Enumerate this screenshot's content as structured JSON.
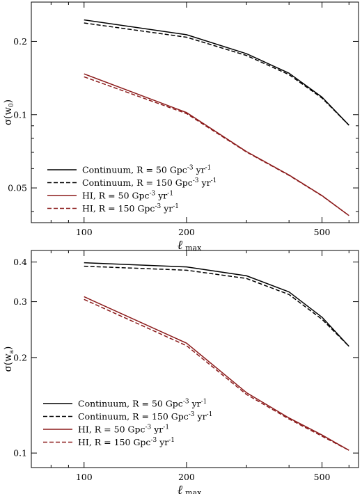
{
  "colors": {
    "continuum": "#000000",
    "hi": "#8b1a1a"
  },
  "chart_data": [
    {
      "type": "line",
      "xlabel_main": "ℓ",
      "xlabel_sub": "max",
      "ylabel_main": "σ(w",
      "ylabel_sub": "0",
      "ylabel_close": ")",
      "xscale": "log",
      "yscale": "log",
      "xlim": [
        70,
        640
      ],
      "ylim": [
        0.036,
        0.29
      ],
      "xticks": [
        100,
        200,
        500
      ],
      "xtick_labels": [
        "100",
        "200",
        "500"
      ],
      "yticks": [
        0.05,
        0.1,
        0.2
      ],
      "ytick_labels": [
        "0.05",
        "0.1",
        "0.2"
      ],
      "legend_position": "lower-left",
      "grid": false,
      "x": [
        100,
        200,
        300,
        400,
        500,
        600
      ],
      "series": [
        {
          "name": "Continuum, R = 50 Gpc-3 yr-1",
          "legend": {
            "a": "Continuum, R = 50 Gpc",
            "b": "-3",
            "c": " yr",
            "d": "-1"
          },
          "color": "continuum",
          "dash": false,
          "values": [
            0.245,
            0.213,
            0.178,
            0.148,
            0.118,
            0.0905
          ]
        },
        {
          "name": "Continuum, R = 150 Gpc-3 yr-1",
          "legend": {
            "a": "Continuum, R = 150 Gpc",
            "b": "-3",
            "c": " yr",
            "d": "-1"
          },
          "color": "continuum",
          "dash": true,
          "values": [
            0.238,
            0.208,
            0.175,
            0.146,
            0.117,
            0.0905
          ]
        },
        {
          "name": "HI, R = 50 Gpc-3 yr-1",
          "legend": {
            "a": "HI, R = 50 Gpc",
            "b": "-3",
            "c": " yr",
            "d": "-1"
          },
          "color": "hi",
          "dash": false,
          "values": [
            0.147,
            0.102,
            0.0705,
            0.0565,
            0.0465,
            0.0385
          ]
        },
        {
          "name": "HI, R = 150 Gpc-3 yr-1",
          "legend": {
            "a": "HI, R = 150 Gpc",
            "b": "-3",
            "c": " yr",
            "d": "-1"
          },
          "color": "hi",
          "dash": true,
          "values": [
            0.143,
            0.101,
            0.0702,
            0.0563,
            0.0464,
            0.0385
          ]
        }
      ]
    },
    {
      "type": "line",
      "xlabel_main": "ℓ",
      "xlabel_sub": "max",
      "ylabel_main": "σ(w",
      "ylabel_sub": "a",
      "ylabel_close": ")",
      "xscale": "log",
      "yscale": "log",
      "xlim": [
        70,
        640
      ],
      "ylim": [
        0.09,
        0.435
      ],
      "xticks": [
        100,
        200,
        500
      ],
      "xtick_labels": [
        "100",
        "200",
        "500"
      ],
      "yticks": [
        0.1,
        0.2,
        0.3,
        0.4
      ],
      "ytick_labels": [
        "0.1",
        "0.2",
        "0.3",
        "0.4"
      ],
      "legend_position": "lower-left",
      "grid": false,
      "x": [
        100,
        200,
        300,
        400,
        500,
        600
      ],
      "series": [
        {
          "name": "Continuum, R = 50 Gpc-3 yr-1",
          "legend": {
            "a": "Continuum, R = 50 Gpc",
            "b": "-3",
            "c": " yr",
            "d": "-1"
          },
          "color": "continuum",
          "dash": false,
          "values": [
            0.398,
            0.386,
            0.362,
            0.322,
            0.268,
            0.217
          ]
        },
        {
          "name": "Continuum, R = 150 Gpc-3 yr-1",
          "legend": {
            "a": "Continuum, R = 150 Gpc",
            "b": "-3",
            "c": " yr",
            "d": "-1"
          },
          "color": "continuum",
          "dash": true,
          "values": [
            0.388,
            0.377,
            0.355,
            0.316,
            0.264,
            0.217
          ]
        },
        {
          "name": "HI, R = 50 Gpc-3 yr-1",
          "legend": {
            "a": "HI, R = 50 Gpc",
            "b": "-3",
            "c": " yr",
            "d": "-1"
          },
          "color": "hi",
          "dash": false,
          "values": [
            0.311,
            0.222,
            0.155,
            0.129,
            0.114,
            0.102
          ]
        },
        {
          "name": "HI, R = 150 Gpc-3 yr-1",
          "legend": {
            "a": "HI, R = 150 Gpc",
            "b": "-3",
            "c": " yr",
            "d": "-1"
          },
          "color": "hi",
          "dash": true,
          "values": [
            0.305,
            0.218,
            0.153,
            0.128,
            0.113,
            0.102
          ]
        }
      ]
    }
  ]
}
